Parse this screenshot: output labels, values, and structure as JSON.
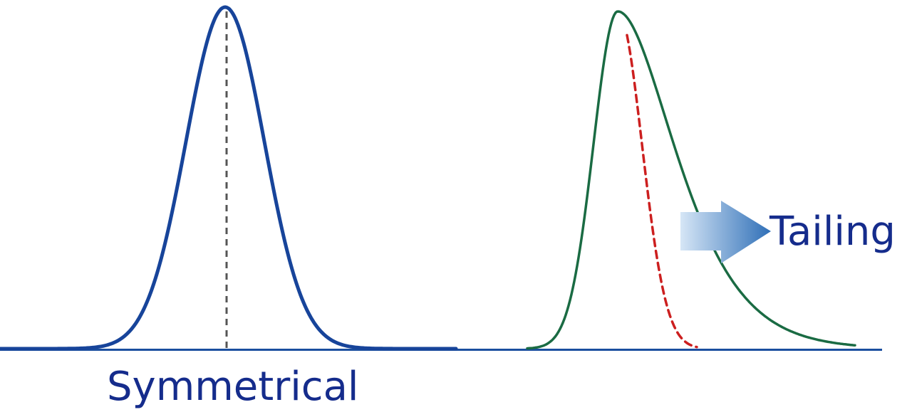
{
  "labels": {
    "symmetrical": "Symmetrical",
    "tailing": "Tailing"
  },
  "colors": {
    "symmetric_peak": "#17449a",
    "tailing_peak": "#1a6b43",
    "ideal_overlay": "#cc1f1f",
    "center_line": "#555555",
    "baseline": "#1b4f9f",
    "baseline_light": "#bfbfbf",
    "label_text": "#152c8c",
    "arrow_dark": "#2f6fb7",
    "arrow_light": "#d6e6f6"
  },
  "icons": {
    "arrow": "right-arrow-icon"
  }
}
